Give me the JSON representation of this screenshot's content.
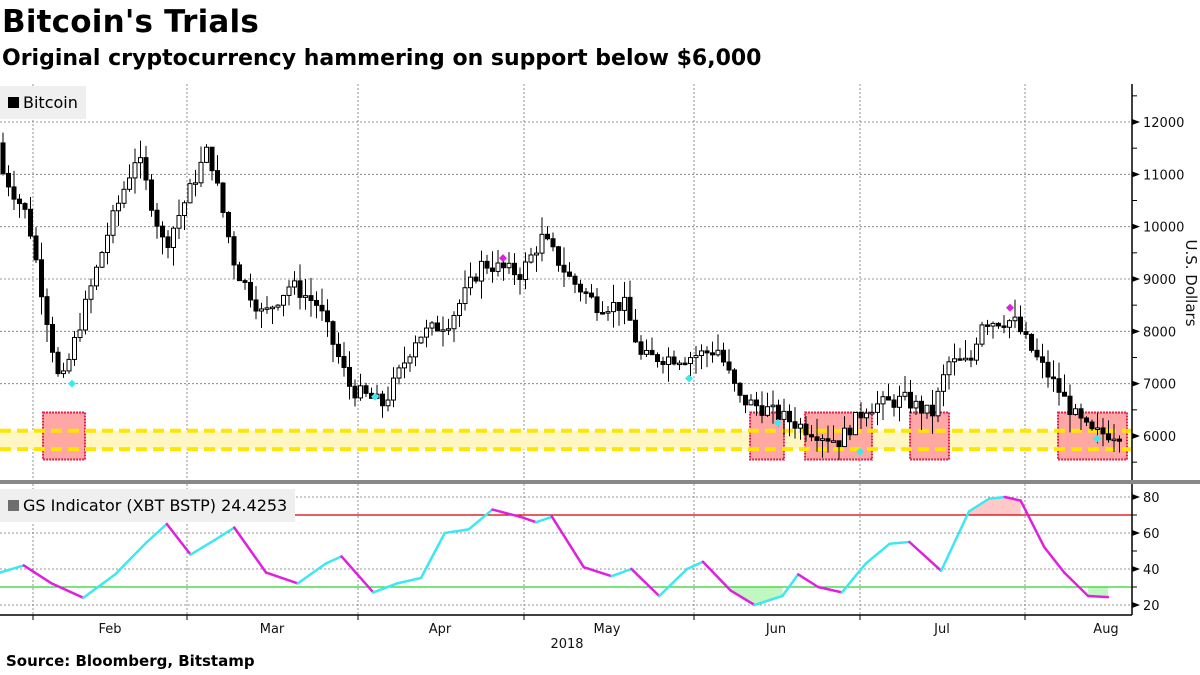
{
  "header": {
    "title": "Bitcoin's Trials",
    "subtitle": "Original cryptocurrency hammering on support below $6,000"
  },
  "legend_top": {
    "label": "Bitcoin",
    "color": "#000000"
  },
  "legend_bottom": {
    "label": "GS Indicator (XBT BSTP) 24.4253",
    "color": "#6e6e6e"
  },
  "source": "Source: Bloomberg, Bitstamp",
  "colors": {
    "candle": "#000000",
    "support_band": "#fff7c2",
    "support_dash": "#ffe600",
    "support_box_fill": "#ff9d9d",
    "support_box_border": "#e0204a",
    "indicator_up": "#3ee8f0",
    "indicator_down": "#e020e0",
    "overbought_line": "#d40000",
    "oversold_line": "#2fd42f",
    "divider": "#888888"
  },
  "chart_data": [
    {
      "type": "candlestick",
      "title": "Bitcoin's Trials",
      "subtitle": "Original cryptocurrency hammering on support below $6,000",
      "series_name": "Bitcoin",
      "ylabel": "U.S. Dollars",
      "ylim": [
        5300,
        12700
      ],
      "yticks": [
        6000,
        7000,
        8000,
        9000,
        10000,
        11000,
        12000
      ],
      "x_ticks": [
        "Feb",
        "Mar",
        "Apr",
        "May",
        "Jun",
        "Jul",
        "Aug"
      ],
      "x_year_label": "2018",
      "grid": true,
      "support_band": {
        "low": 5750,
        "high": 6100
      },
      "support_boxes": [
        {
          "start": "2018-02-03",
          "end": "2018-02-09",
          "low": 5550,
          "high": 6450
        },
        {
          "start": "2018-05-29",
          "end": "2018-06-04",
          "low": 5550,
          "high": 6450
        },
        {
          "start": "2018-06-09",
          "end": "2018-06-22",
          "low": 5550,
          "high": 6450
        },
        {
          "start": "2018-06-29",
          "end": "2018-07-06",
          "low": 5550,
          "high": 6450
        },
        {
          "start": "2018-07-29",
          "end": "2018-08-11",
          "low": 5550,
          "high": 6450
        }
      ],
      "signal_markers": [
        {
          "date": "2018-02-08",
          "value": 7000,
          "type": "buy",
          "color": "#3ee8f0"
        },
        {
          "date": "2018-04-01",
          "value": 6750,
          "type": "buy",
          "color": "#3ee8f0"
        },
        {
          "date": "2018-04-25",
          "value": 9400,
          "type": "sell",
          "color": "#e020e0"
        },
        {
          "date": "2018-05-23",
          "value": 7100,
          "type": "buy",
          "color": "#3ee8f0"
        },
        {
          "date": "2018-06-03",
          "value": 6250,
          "type": "buy",
          "color": "#3ee8f0"
        },
        {
          "date": "2018-06-18",
          "value": 5700,
          "type": "buy",
          "color": "#3ee8f0"
        },
        {
          "date": "2018-07-24",
          "value": 8450,
          "type": "sell",
          "color": "#e020e0"
        },
        {
          "date": "2018-08-10",
          "value": 5950,
          "type": "buy",
          "color": "#3ee8f0"
        }
      ],
      "closes_approx": [
        {
          "x": "2018-01-20",
          "close": 11600
        },
        {
          "x": "2018-01-25",
          "close": 11300
        },
        {
          "x": "2018-01-31",
          "close": 10200
        },
        {
          "x": "2018-02-06",
          "close": 6900
        },
        {
          "x": "2018-02-10",
          "close": 8300
        },
        {
          "x": "2018-02-15",
          "close": 10000
        },
        {
          "x": "2018-02-20",
          "close": 11400
        },
        {
          "x": "2018-02-25",
          "close": 9600
        },
        {
          "x": "2018-03-05",
          "close": 11500
        },
        {
          "x": "2018-03-10",
          "close": 9200
        },
        {
          "x": "2018-03-15",
          "close": 8300
        },
        {
          "x": "2018-03-20",
          "close": 8900
        },
        {
          "x": "2018-03-25",
          "close": 8500
        },
        {
          "x": "2018-03-31",
          "close": 6900
        },
        {
          "x": "2018-04-06",
          "close": 6600
        },
        {
          "x": "2018-04-12",
          "close": 7900
        },
        {
          "x": "2018-04-18",
          "close": 8200
        },
        {
          "x": "2018-04-24",
          "close": 9300
        },
        {
          "x": "2018-05-01",
          "close": 9100
        },
        {
          "x": "2018-05-05",
          "close": 9800
        },
        {
          "x": "2018-05-10",
          "close": 9000
        },
        {
          "x": "2018-05-15",
          "close": 8500
        },
        {
          "x": "2018-05-20",
          "close": 8500
        },
        {
          "x": "2018-05-23",
          "close": 7500
        },
        {
          "x": "2018-05-31",
          "close": 7500
        },
        {
          "x": "2018-06-06",
          "close": 7650
        },
        {
          "x": "2018-06-10",
          "close": 6700
        },
        {
          "x": "2018-06-15",
          "close": 6500
        },
        {
          "x": "2018-06-22",
          "close": 6150
        },
        {
          "x": "2018-06-28",
          "close": 5900
        },
        {
          "x": "2018-07-03",
          "close": 6550
        },
        {
          "x": "2018-07-10",
          "close": 6700
        },
        {
          "x": "2018-07-15",
          "close": 6400
        },
        {
          "x": "2018-07-18",
          "close": 7400
        },
        {
          "x": "2018-07-22",
          "close": 7400
        },
        {
          "x": "2018-07-24",
          "close": 8200
        },
        {
          "x": "2018-07-30",
          "close": 8200
        },
        {
          "x": "2018-08-03",
          "close": 7500
        },
        {
          "x": "2018-08-07",
          "close": 6900
        },
        {
          "x": "2018-08-10",
          "close": 6400
        },
        {
          "x": "2018-08-13",
          "close": 6050
        }
      ]
    },
    {
      "type": "line",
      "title": "GS Indicator (XBT BSTP)",
      "last_value": 24.4253,
      "ylim": [
        15,
        85
      ],
      "yticks": [
        20,
        40,
        60,
        80
      ],
      "reference_lines": [
        {
          "value": 70,
          "color": "#d40000",
          "label": "overbought"
        },
        {
          "value": 30,
          "color": "#2fd42f",
          "label": "oversold"
        }
      ],
      "x_ticks": [
        "Feb",
        "Mar",
        "Apr",
        "May",
        "Jun",
        "Jul",
        "Aug"
      ],
      "points": [
        {
          "x": "2018-01-16",
          "y": 38
        },
        {
          "x": "2018-01-22",
          "y": 42
        },
        {
          "x": "2018-01-29",
          "y": 32
        },
        {
          "x": "2018-02-06",
          "y": 24
        },
        {
          "x": "2018-02-14",
          "y": 37
        },
        {
          "x": "2018-02-22",
          "y": 55
        },
        {
          "x": "2018-02-27",
          "y": 65
        },
        {
          "x": "2018-03-05",
          "y": 48
        },
        {
          "x": "2018-03-11",
          "y": 56
        },
        {
          "x": "2018-03-16",
          "y": 63
        },
        {
          "x": "2018-03-24",
          "y": 38
        },
        {
          "x": "2018-04-01",
          "y": 32
        },
        {
          "x": "2018-04-08",
          "y": 43
        },
        {
          "x": "2018-04-12",
          "y": 47
        },
        {
          "x": "2018-04-20",
          "y": 27
        },
        {
          "x": "2018-04-26",
          "y": 32
        },
        {
          "x": "2018-05-02",
          "y": 35
        },
        {
          "x": "2018-05-08",
          "y": 60
        },
        {
          "x": "2018-05-14",
          "y": 62
        },
        {
          "x": "2018-05-20",
          "y": 73
        },
        {
          "x": "2018-05-27",
          "y": 69
        },
        {
          "x": "2018-05-31",
          "y": 66
        },
        {
          "x": "2018-06-04",
          "y": 69
        },
        {
          "x": "2018-06-12",
          "y": 41
        },
        {
          "x": "2018-06-19",
          "y": 36
        },
        {
          "x": "2018-06-24",
          "y": 40
        },
        {
          "x": "2018-07-01",
          "y": 25
        },
        {
          "x": "2018-07-08",
          "y": 40
        },
        {
          "x": "2018-07-12",
          "y": 44
        },
        {
          "x": "2018-07-19",
          "y": 28
        },
        {
          "x": "2018-07-25",
          "y": 20
        },
        {
          "x": "2018-08-01",
          "y": 25
        },
        {
          "x": "2018-08-05",
          "y": 37
        },
        {
          "x": "2018-08-10",
          "y": 30
        },
        {
          "x": "2018-08-16",
          "y": 27
        },
        {
          "x": "2018-08-22",
          "y": 43
        },
        {
          "x": "2018-08-28",
          "y": 54
        },
        {
          "x": "2018-09-02",
          "y": 55
        },
        {
          "x": "2018-09-10",
          "y": 39
        },
        {
          "x": "2018-09-17",
          "y": 72
        },
        {
          "x": "2018-09-22",
          "y": 79
        },
        {
          "x": "2018-09-26",
          "y": 80
        },
        {
          "x": "2018-09-30",
          "y": 78
        },
        {
          "x": "2018-10-06",
          "y": 52
        },
        {
          "x": "2018-10-11",
          "y": 38
        },
        {
          "x": "2018-10-17",
          "y": 25
        },
        {
          "x": "2018-10-22",
          "y": 24.4
        }
      ]
    }
  ],
  "axes": {
    "right_top_ticks": [
      "12000",
      "11000",
      "10000",
      "9000",
      "8000",
      "7000",
      "6000"
    ],
    "right_top_label": "U.S. Dollars",
    "right_bottom_ticks": [
      "80",
      "60",
      "40",
      "20"
    ],
    "x_months": [
      "Feb",
      "Mar",
      "Apr",
      "May",
      "Jun",
      "Jul",
      "Aug"
    ],
    "x_year": "2018"
  }
}
